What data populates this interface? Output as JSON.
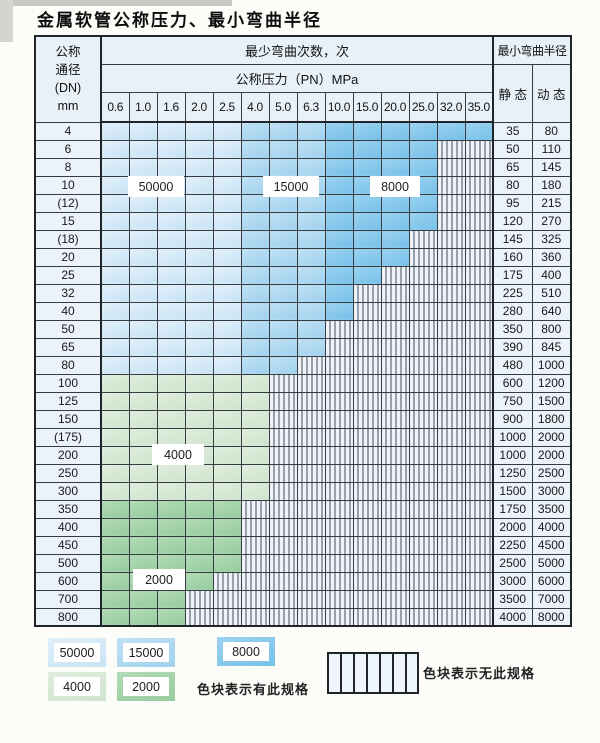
{
  "page": {
    "title": "金属软管公称压力、最小弯曲半径"
  },
  "table": {
    "header": {
      "dn_lines": [
        "公称",
        "通径",
        "(DN)",
        "mm"
      ],
      "bend_cycles": "最少弯曲次数，次",
      "pressure": "公称压力（PN）MPa",
      "min_radius": "最小弯曲半径",
      "static_label": "静 态",
      "dynamic_label": "动 态",
      "pressures": [
        "0.6",
        "1.0",
        "1.6",
        "2.0",
        "2.5",
        "4.0",
        "5.0",
        "6.3",
        "10.0",
        "15.0",
        "20.0",
        "25.0",
        "32.0",
        "35.0"
      ]
    },
    "rows": [
      {
        "dn": "4",
        "colored": 14,
        "band": "blue",
        "static": "35",
        "dynamic": "80"
      },
      {
        "dn": "6",
        "colored": 12,
        "band": "blue",
        "static": "50",
        "dynamic": "110"
      },
      {
        "dn": "8",
        "colored": 12,
        "band": "blue",
        "static": "65",
        "dynamic": "145"
      },
      {
        "dn": "10",
        "colored": 12,
        "band": "blue",
        "static": "80",
        "dynamic": "180"
      },
      {
        "dn": "(12)",
        "colored": 12,
        "band": "blue",
        "static": "95",
        "dynamic": "215"
      },
      {
        "dn": "15",
        "colored": 12,
        "band": "blue",
        "static": "120",
        "dynamic": "270"
      },
      {
        "dn": "(18)",
        "colored": 11,
        "band": "blue",
        "static": "145",
        "dynamic": "325"
      },
      {
        "dn": "20",
        "colored": 11,
        "band": "blue",
        "static": "160",
        "dynamic": "360"
      },
      {
        "dn": "25",
        "colored": 10,
        "band": "blue",
        "static": "175",
        "dynamic": "400"
      },
      {
        "dn": "32",
        "colored": 9,
        "band": "blue",
        "static": "225",
        "dynamic": "510"
      },
      {
        "dn": "40",
        "colored": 9,
        "band": "blue",
        "static": "280",
        "dynamic": "640"
      },
      {
        "dn": "50",
        "colored": 8,
        "band": "blue",
        "static": "350",
        "dynamic": "800"
      },
      {
        "dn": "65",
        "colored": 8,
        "band": "blue",
        "static": "390",
        "dynamic": "845"
      },
      {
        "dn": "80",
        "colored": 7,
        "band": "blue",
        "static": "480",
        "dynamic": "1000"
      },
      {
        "dn": "100",
        "colored": 6,
        "band": "green-light",
        "static": "600",
        "dynamic": "1200"
      },
      {
        "dn": "125",
        "colored": 6,
        "band": "green-light",
        "static": "750",
        "dynamic": "1500"
      },
      {
        "dn": "150",
        "colored": 6,
        "band": "green-light",
        "static": "900",
        "dynamic": "1800"
      },
      {
        "dn": "(175)",
        "colored": 6,
        "band": "green-light",
        "static": "1000",
        "dynamic": "2000"
      },
      {
        "dn": "200",
        "colored": 6,
        "band": "green-light",
        "static": "1000",
        "dynamic": "2000"
      },
      {
        "dn": "250",
        "colored": 6,
        "band": "green-light",
        "static": "1250",
        "dynamic": "2500"
      },
      {
        "dn": "300",
        "colored": 6,
        "band": "green-light",
        "static": "1500",
        "dynamic": "3000"
      },
      {
        "dn": "350",
        "colored": 5,
        "band": "green-dark",
        "static": "1750",
        "dynamic": "3500"
      },
      {
        "dn": "400",
        "colored": 5,
        "band": "green-dark",
        "static": "2000",
        "dynamic": "4000"
      },
      {
        "dn": "450",
        "colored": 5,
        "band": "green-dark",
        "static": "2250",
        "dynamic": "4500"
      },
      {
        "dn": "500",
        "colored": 5,
        "band": "green-dark",
        "static": "2500",
        "dynamic": "5000"
      },
      {
        "dn": "600",
        "colored": 4,
        "band": "green-dark",
        "static": "3000",
        "dynamic": "6000"
      },
      {
        "dn": "700",
        "colored": 3,
        "band": "green-dark",
        "static": "3500",
        "dynamic": "7000"
      },
      {
        "dn": "800",
        "colored": 3,
        "band": "green-dark",
        "static": "4000",
        "dynamic": "8000"
      }
    ]
  },
  "overlay_labels": [
    {
      "text": "50000"
    },
    {
      "text": "15000"
    },
    {
      "text": "8000"
    },
    {
      "text": "4000"
    },
    {
      "text": "2000"
    }
  ],
  "legend": {
    "chips": [
      {
        "value": "50000",
        "shade": "b1"
      },
      {
        "value": "15000",
        "shade": "b2"
      },
      {
        "value": "8000",
        "shade": "b3"
      },
      {
        "value": "4000",
        "shade": "g1"
      },
      {
        "value": "2000",
        "shade": "g2"
      }
    ],
    "has_spec_note": "色块表示有此规格",
    "no_spec_note": "色块表示无此规格"
  },
  "colors": {
    "bend_50000": "#c8e3f4",
    "bend_15000": "#a0d1ee",
    "bend_8000": "#77c1e9",
    "bend_4000": "#cee4ce",
    "bend_2000": "#96cc9e",
    "no_spec_bg": "#eef3fa",
    "grid_line": "#343c42",
    "header_bg": "#e9f1f8"
  }
}
